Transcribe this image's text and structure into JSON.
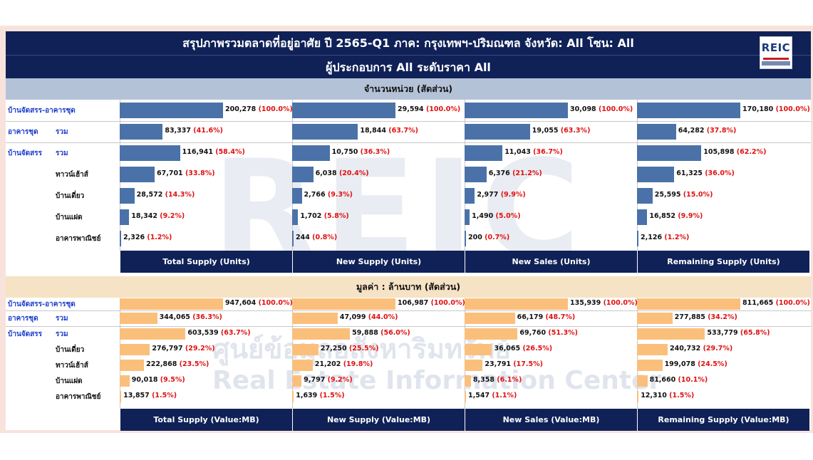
{
  "header": {
    "line1": "สรุปภาพรวมตลาดที่อยู่อาศัย   ปี 2565-Q1    ภาค: กรุงเทพฯ-ปริมณฑล  จังหวัด: All โซน: All",
    "line2": "ผู้ประกอบการ All    ระดับราคา All",
    "logo_text": "REIC"
  },
  "watermark": {
    "big": "REIC",
    "thai": "ศูนย์ข้อมูลอสังหาริมทรัพย์",
    "english": "Real Estate Information Center"
  },
  "colors": {
    "header": "#0f2157",
    "units_bar": "#4a72a8",
    "value_bar": "#fbbf7c",
    "pct": "#e01010",
    "label": "#1a3ccc"
  },
  "chart_data": [
    {
      "type": "bar",
      "title": "จำนวนหน่วย (สัดส่วน)",
      "rows": [
        {
          "group": "บ้านจัดสรร-อาคารชุด",
          "sub": ""
        },
        {
          "group": "อาคารชุด",
          "sub": "รวม"
        },
        {
          "group": "บ้านจัดสรร",
          "sub": "รวม"
        },
        {
          "group": "",
          "sub": "ทาวน์เฮ้าส์"
        },
        {
          "group": "",
          "sub": "บ้านเดี่ยว"
        },
        {
          "group": "",
          "sub": "บ้านแฝด"
        },
        {
          "group": "",
          "sub": "อาคารพาณิชย์"
        }
      ],
      "series": [
        {
          "name": "Total Supply (Units)",
          "values": [
            200278,
            83337,
            116941,
            67701,
            28572,
            18342,
            2326
          ],
          "labels": [
            "200,278",
            "83,337",
            "116,941",
            "67,701",
            "28,572",
            "18,342",
            "2,326"
          ],
          "pcts": [
            "(100.0%)",
            "(41.6%)",
            "(58.4%)",
            "(33.8%)",
            "(14.3%)",
            "(9.2%)",
            "(1.2%)"
          ]
        },
        {
          "name": "New Supply (Units)",
          "values": [
            29594,
            18844,
            10750,
            6038,
            2766,
            1702,
            244
          ],
          "labels": [
            "29,594",
            "18,844",
            "10,750",
            "6,038",
            "2,766",
            "1,702",
            "244"
          ],
          "pcts": [
            "(100.0%)",
            "(63.7%)",
            "(36.3%)",
            "(20.4%)",
            "(9.3%)",
            "(5.8%)",
            "(0.8%)"
          ]
        },
        {
          "name": "New Sales (Units)",
          "values": [
            30098,
            19055,
            11043,
            6376,
            2977,
            1490,
            200
          ],
          "labels": [
            "30,098",
            "19,055",
            "11,043",
            "6,376",
            "2,977",
            "1,490",
            "200"
          ],
          "pcts": [
            "(100.0%)",
            "(63.3%)",
            "(36.7%)",
            "(21.2%)",
            "(9.9%)",
            "(5.0%)",
            "(0.7%)"
          ]
        },
        {
          "name": "Remaining Supply (Units)",
          "values": [
            170180,
            64282,
            105898,
            61325,
            25595,
            16852,
            2126
          ],
          "labels": [
            "170,180",
            "64,282",
            "105,898",
            "61,325",
            "25,595",
            "16,852",
            "2,126"
          ],
          "pcts": [
            "(100.0%)",
            "(37.8%)",
            "(62.2%)",
            "(36.0%)",
            "(15.0%)",
            "(9.9%)",
            "(1.2%)"
          ]
        }
      ]
    },
    {
      "type": "bar",
      "title": "มูลค่า : ล้านบาท (สัดส่วน)",
      "rows": [
        {
          "group": "บ้านจัดสรร-อาคารชุด",
          "sub": ""
        },
        {
          "group": "อาคารชุด",
          "sub": "รวม"
        },
        {
          "group": "บ้านจัดสรร",
          "sub": "รวม"
        },
        {
          "group": "",
          "sub": "บ้านเดี่ยว"
        },
        {
          "group": "",
          "sub": "ทาวน์เฮ้าส์"
        },
        {
          "group": "",
          "sub": "บ้านแฝด"
        },
        {
          "group": "",
          "sub": "อาคารพาณิชย์"
        }
      ],
      "series": [
        {
          "name": "Total Supply (Value:MB)",
          "values": [
            947604,
            344065,
            603539,
            276797,
            222868,
            90018,
            13857
          ],
          "labels": [
            "947,604",
            "344,065",
            "603,539",
            "276,797",
            "222,868",
            "90,018",
            "13,857"
          ],
          "pcts": [
            "(100.0%)",
            "(36.3%)",
            "(63.7%)",
            "(29.2%)",
            "(23.5%)",
            "(9.5%)",
            "(1.5%)"
          ]
        },
        {
          "name": "New Supply (Value:MB)",
          "values": [
            106987,
            47099,
            59888,
            27250,
            21202,
            9797,
            1639
          ],
          "labels": [
            "106,987",
            "47,099",
            "59,888",
            "27,250",
            "21,202",
            "9,797",
            "1,639"
          ],
          "pcts": [
            "(100.0%)",
            "(44.0%)",
            "(56.0%)",
            "(25.5%)",
            "(19.8%)",
            "(9.2%)",
            "(1.5%)"
          ]
        },
        {
          "name": "New Sales (Value:MB)",
          "values": [
            135939,
            66179,
            69760,
            36065,
            23791,
            8358,
            1547
          ],
          "labels": [
            "135,939",
            "66,179",
            "69,760",
            "36,065",
            "23,791",
            "8,358",
            "1,547"
          ],
          "pcts": [
            "(100.0%)",
            "(48.7%)",
            "(51.3%)",
            "(26.5%)",
            "(17.5%)",
            "(6.1%)",
            "(1.1%)"
          ]
        },
        {
          "name": "Remaining Supply (Value:MB)",
          "values": [
            811665,
            277885,
            533779,
            240732,
            199078,
            81660,
            12310
          ],
          "labels": [
            "811,665",
            "277,885",
            "533,779",
            "240,732",
            "199,078",
            "81,660",
            "12,310"
          ],
          "pcts": [
            "(100.0%)",
            "(34.2%)",
            "(65.8%)",
            "(29.7%)",
            "(24.5%)",
            "(10.1%)",
            "(1.5%)"
          ]
        }
      ]
    }
  ]
}
